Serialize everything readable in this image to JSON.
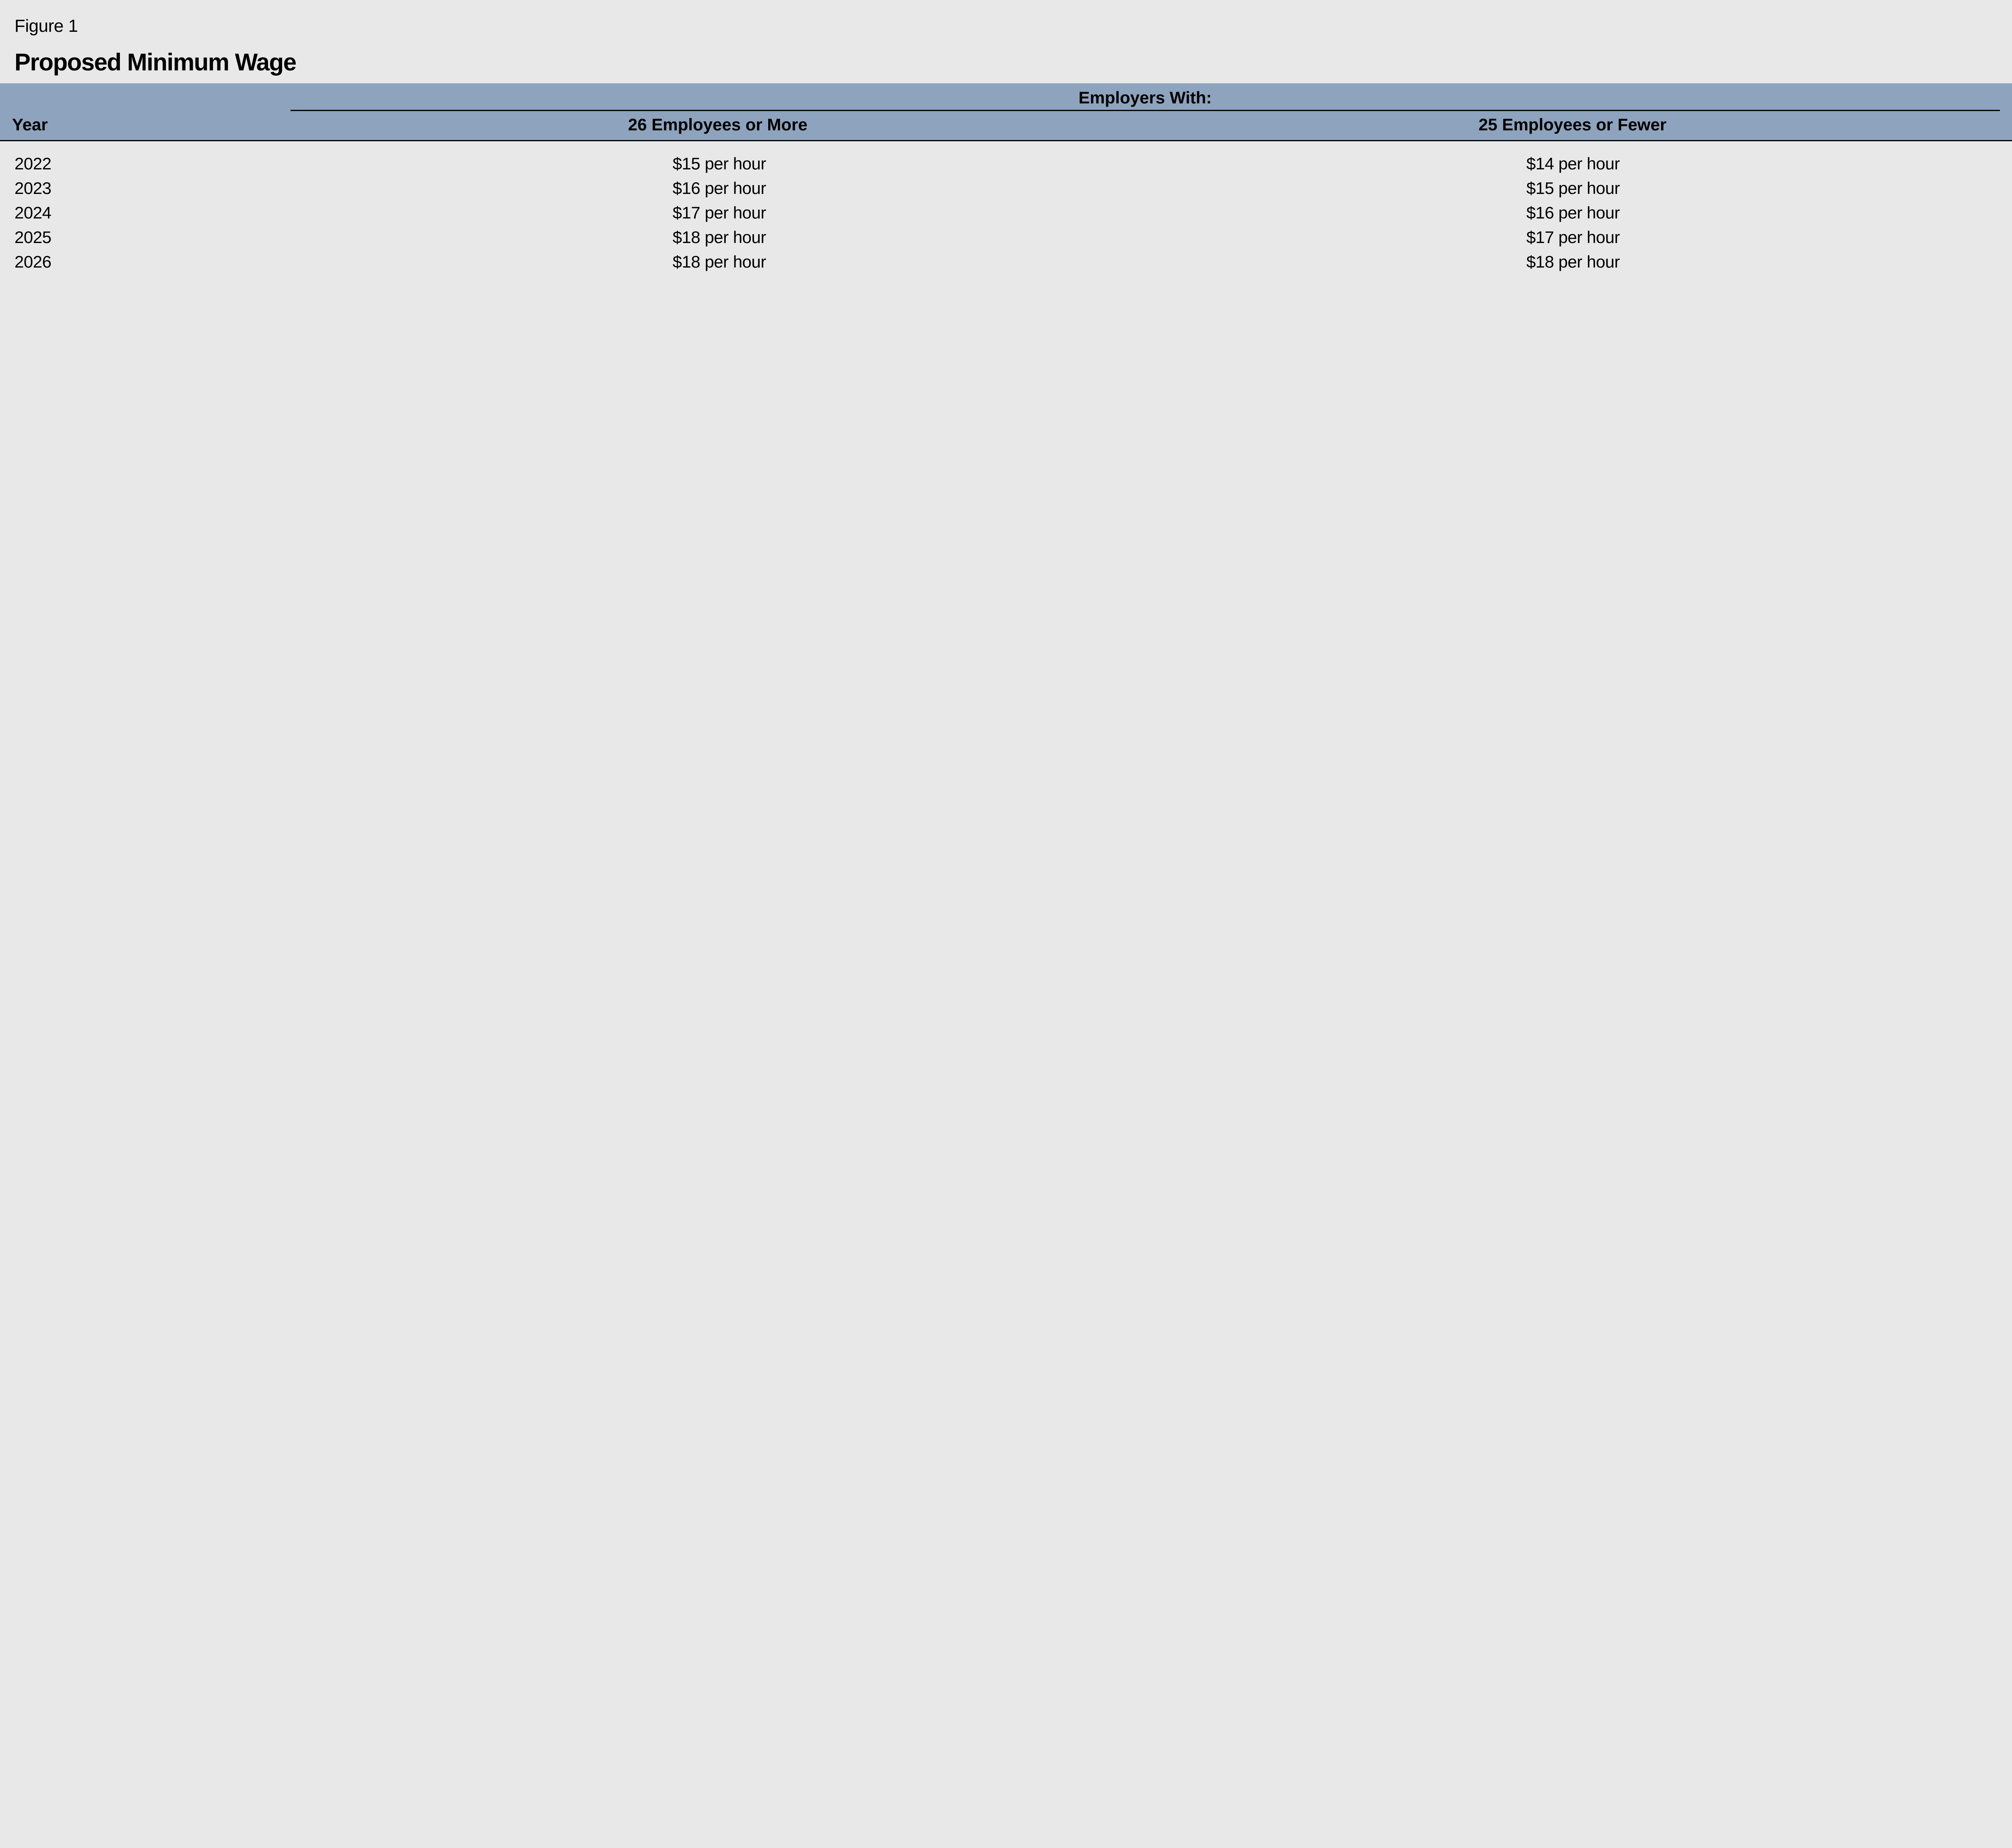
{
  "figure_label": "Figure 1",
  "title": "Proposed Minimum Wage",
  "table": {
    "type": "table",
    "background_color": "#e8e8e8",
    "header_band_color": "#8ea3bd",
    "rule_color": "#000000",
    "text_color": "#000000",
    "title_fontsize_pt": 46,
    "figure_label_fontsize_pt": 33,
    "header_fontsize_pt": 32,
    "body_fontsize_pt": 32,
    "super_header": "Employers With:",
    "columns": {
      "year": {
        "label": "Year",
        "width_pct": 14,
        "align": "left"
      },
      "large": {
        "label": "26 Employees or More",
        "width_pct": 43,
        "align": "center"
      },
      "small": {
        "label": "25 Employees or Fewer",
        "width_pct": 43,
        "align": "center"
      }
    },
    "rows": [
      {
        "year": "2022",
        "large": "$15 per hour",
        "small": "$14 per hour"
      },
      {
        "year": "2023",
        "large": "$16 per hour",
        "small": "$15 per hour"
      },
      {
        "year": "2024",
        "large": "$17 per hour",
        "small": "$16 per hour"
      },
      {
        "year": "2025",
        "large": "$18 per hour",
        "small": "$17 per hour"
      },
      {
        "year": "2026",
        "large": "$18 per hour",
        "small": "$18 per hour"
      }
    ]
  }
}
